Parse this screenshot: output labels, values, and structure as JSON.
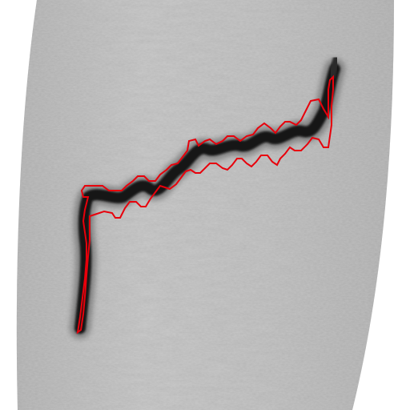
{
  "image": {
    "kind": "ultrasound-style grayscale scan with red segmentation outline",
    "colors": {
      "background": "#ffffff",
      "field_light": "#bdbdbd",
      "field_dark": "#8f8f8f",
      "object": "#141414",
      "outline": "#e8000b"
    },
    "objects": [
      "scan-field",
      "dark-curved-structure",
      "red-contour"
    ]
  }
}
